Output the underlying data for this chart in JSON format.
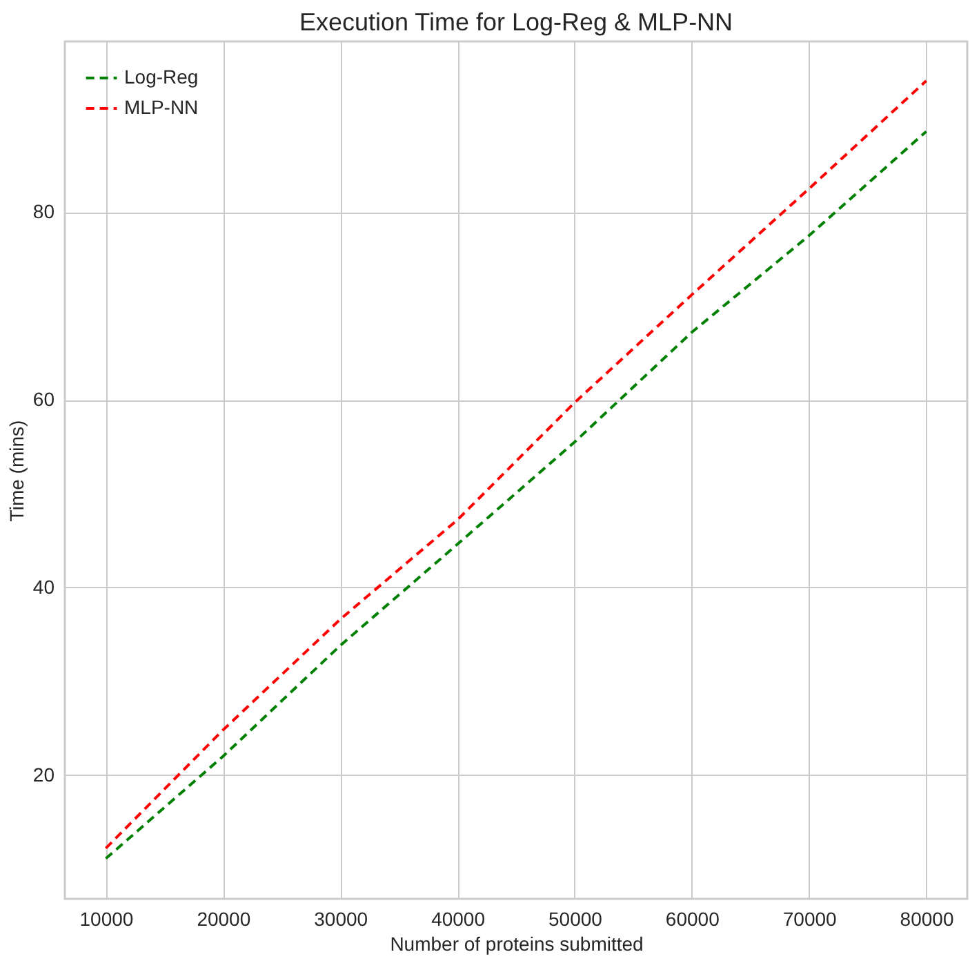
{
  "chart_data": {
    "type": "line",
    "title": "Execution Time for Log-Reg & MLP-NN",
    "xlabel": "Number of proteins submitted",
    "ylabel": "Time (mins)",
    "x": [
      10000,
      20000,
      30000,
      40000,
      50000,
      60000,
      70000,
      80000
    ],
    "series": [
      {
        "name": "Log-Reg",
        "color": "#008000",
        "values": [
          11.1,
          22.0,
          33.8,
          44.6,
          55.5,
          67.2,
          77.5,
          88.6
        ]
      },
      {
        "name": "MLP-NN",
        "color": "#ff0000",
        "values": [
          12.2,
          24.8,
          36.6,
          47.2,
          59.7,
          71.2,
          82.5,
          94.0
        ]
      }
    ],
    "xlim": [
      6500,
      83500
    ],
    "xticks": [
      10000,
      20000,
      30000,
      40000,
      50000,
      60000,
      70000,
      80000
    ],
    "ylim": [
      6.8,
      98.2
    ],
    "yticks": [
      20,
      40,
      60,
      80
    ],
    "grid": true,
    "legend": "top left",
    "line_style": "dashed",
    "marker": "none"
  }
}
